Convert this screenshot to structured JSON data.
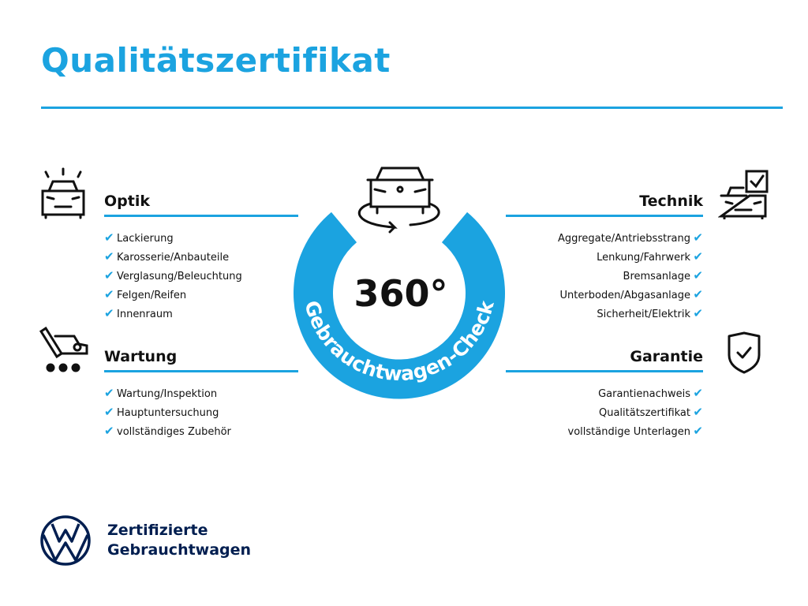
{
  "title": "Qualitätszertifikat",
  "colors": {
    "accent": "#1ba3e0",
    "brand": "#001e50"
  },
  "center": {
    "number": "360°",
    "ring_text": "Gebrauchtwagen-Check",
    "icon": "car-360-rotate-icon"
  },
  "sections": {
    "optik": {
      "heading": "Optik",
      "icon": "car-lights-icon",
      "items": [
        "Lackierung",
        "Karosserie/Anbauteile",
        "Verglasung/Beleuchtung",
        "Felgen/Reifen",
        "Innenraum"
      ]
    },
    "wartung": {
      "heading": "Wartung",
      "icon": "service-tools-icon",
      "items": [
        "Wartung/Inspektion",
        "Hauptuntersuchung",
        "vollständiges Zubehör"
      ]
    },
    "technik": {
      "heading": "Technik",
      "icon": "car-checklist-icon",
      "items": [
        "Aggregate/Antriebsstrang",
        "Lenkung/Fahrwerk",
        "Bremsanlage",
        "Unterboden/Abgasanlage",
        "Sicherheit/Elektrik"
      ]
    },
    "garantie": {
      "heading": "Garantie",
      "icon": "shield-check-icon",
      "items": [
        "Garantienachweis",
        "Qualitätszertifikat",
        "vollständige Unterlagen"
      ]
    }
  },
  "check_mark": "✔",
  "footer": {
    "line1": "Zertifizierte",
    "line2": "Gebrauchtwagen",
    "logo": "vw-logo"
  }
}
